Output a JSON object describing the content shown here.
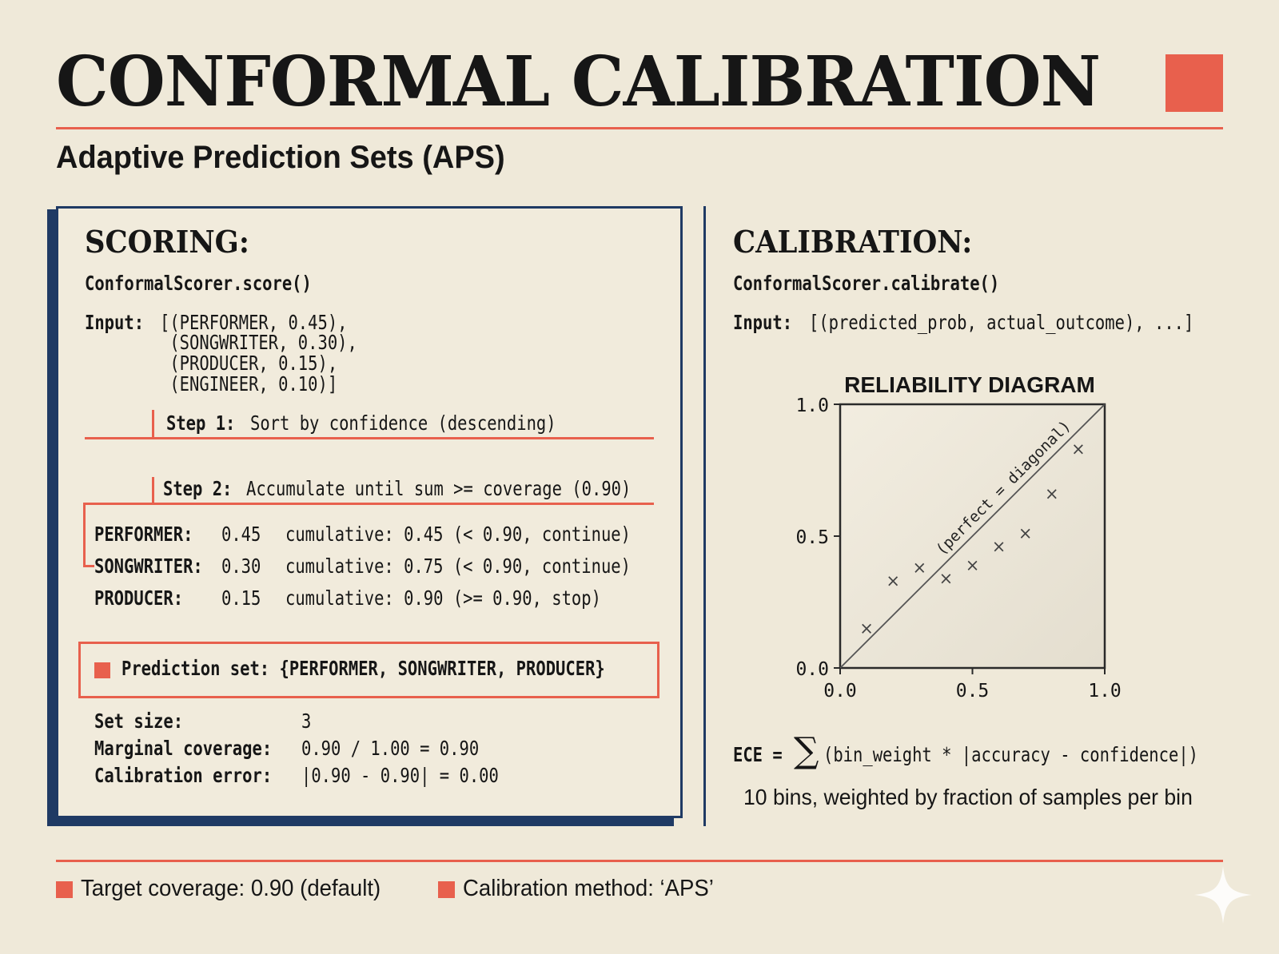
{
  "header": {
    "title": "CONFORMAL CALIBRATION",
    "subtitle": "Adaptive Prediction Sets (APS)"
  },
  "scoring": {
    "heading": "SCORING:",
    "method": "ConformalScorer.score()",
    "input_label": "Input:",
    "input_lines": [
      "[(PERFORMER, 0.45),",
      " (SONGWRITER, 0.30),",
      " (PRODUCER, 0.15),",
      " (ENGINEER, 0.10)]"
    ],
    "step1_label": "Step 1:",
    "step1_text": "Sort by confidence (descending)",
    "step2_label": "Step 2:",
    "step2_text": "Accumulate until sum >= coverage (0.90)",
    "rows": [
      {
        "name": "PERFORMER:",
        "value": "0.45",
        "text": "cumulative: 0.45 (< 0.90, continue)"
      },
      {
        "name": "SONGWRITER:",
        "value": "0.30",
        "text": "cumulative: 0.75 (< 0.90, continue)"
      },
      {
        "name": "PRODUCER:",
        "value": "0.15",
        "text": "cumulative: 0.90 (>= 0.90, stop)"
      }
    ],
    "prediction_set": "Prediction set: {PERFORMER, SONGWRITER, PRODUCER}",
    "stats": [
      {
        "label": "Set size:",
        "value": "3"
      },
      {
        "label": "Marginal coverage:",
        "value": "0.90 / 1.00 = 0.90"
      },
      {
        "label": "Calibration error:",
        "value": "|0.90 - 0.90| = 0.00"
      }
    ]
  },
  "calibration": {
    "heading": "CALIBRATION:",
    "method": "ConformalScorer.calibrate()",
    "input_label": "Input:",
    "input_text": "[(predicted_prob, actual_outcome), ...]",
    "ece_prefix": "ECE = ",
    "ece_symbol": "∑",
    "ece_text": "(bin_weight * |accuracy - confidence|)",
    "ece_note": "10 bins, weighted by fraction of samples per bin"
  },
  "chart_data": {
    "type": "scatter",
    "title": "RELIABILITY DIAGRAM",
    "xlabel": "",
    "ylabel": "",
    "xlim": [
      0,
      1
    ],
    "ylim": [
      0,
      1
    ],
    "xticks": [
      "0.0",
      "0.5",
      "1.0"
    ],
    "yticks": [
      "0.0",
      "0.5",
      "1.0"
    ],
    "diagonal_label": "(perfect = diagonal)",
    "marker": "×",
    "grid": false,
    "points": [
      {
        "x": 0.1,
        "y": 0.15
      },
      {
        "x": 0.2,
        "y": 0.33
      },
      {
        "x": 0.3,
        "y": 0.38
      },
      {
        "x": 0.4,
        "y": 0.34
      },
      {
        "x": 0.5,
        "y": 0.39
      },
      {
        "x": 0.6,
        "y": 0.46
      },
      {
        "x": 0.7,
        "y": 0.51
      },
      {
        "x": 0.8,
        "y": 0.66
      },
      {
        "x": 0.9,
        "y": 0.83
      }
    ]
  },
  "footer": {
    "items": [
      "Target coverage: 0.90 (default)",
      "Calibration method: ‘APS’"
    ]
  },
  "colors": {
    "accent": "#e8604d",
    "navy": "#1f3a64",
    "background": "#efe9d9"
  },
  "icons": [
    "square-bullet-icon",
    "sparkle-icon"
  ]
}
